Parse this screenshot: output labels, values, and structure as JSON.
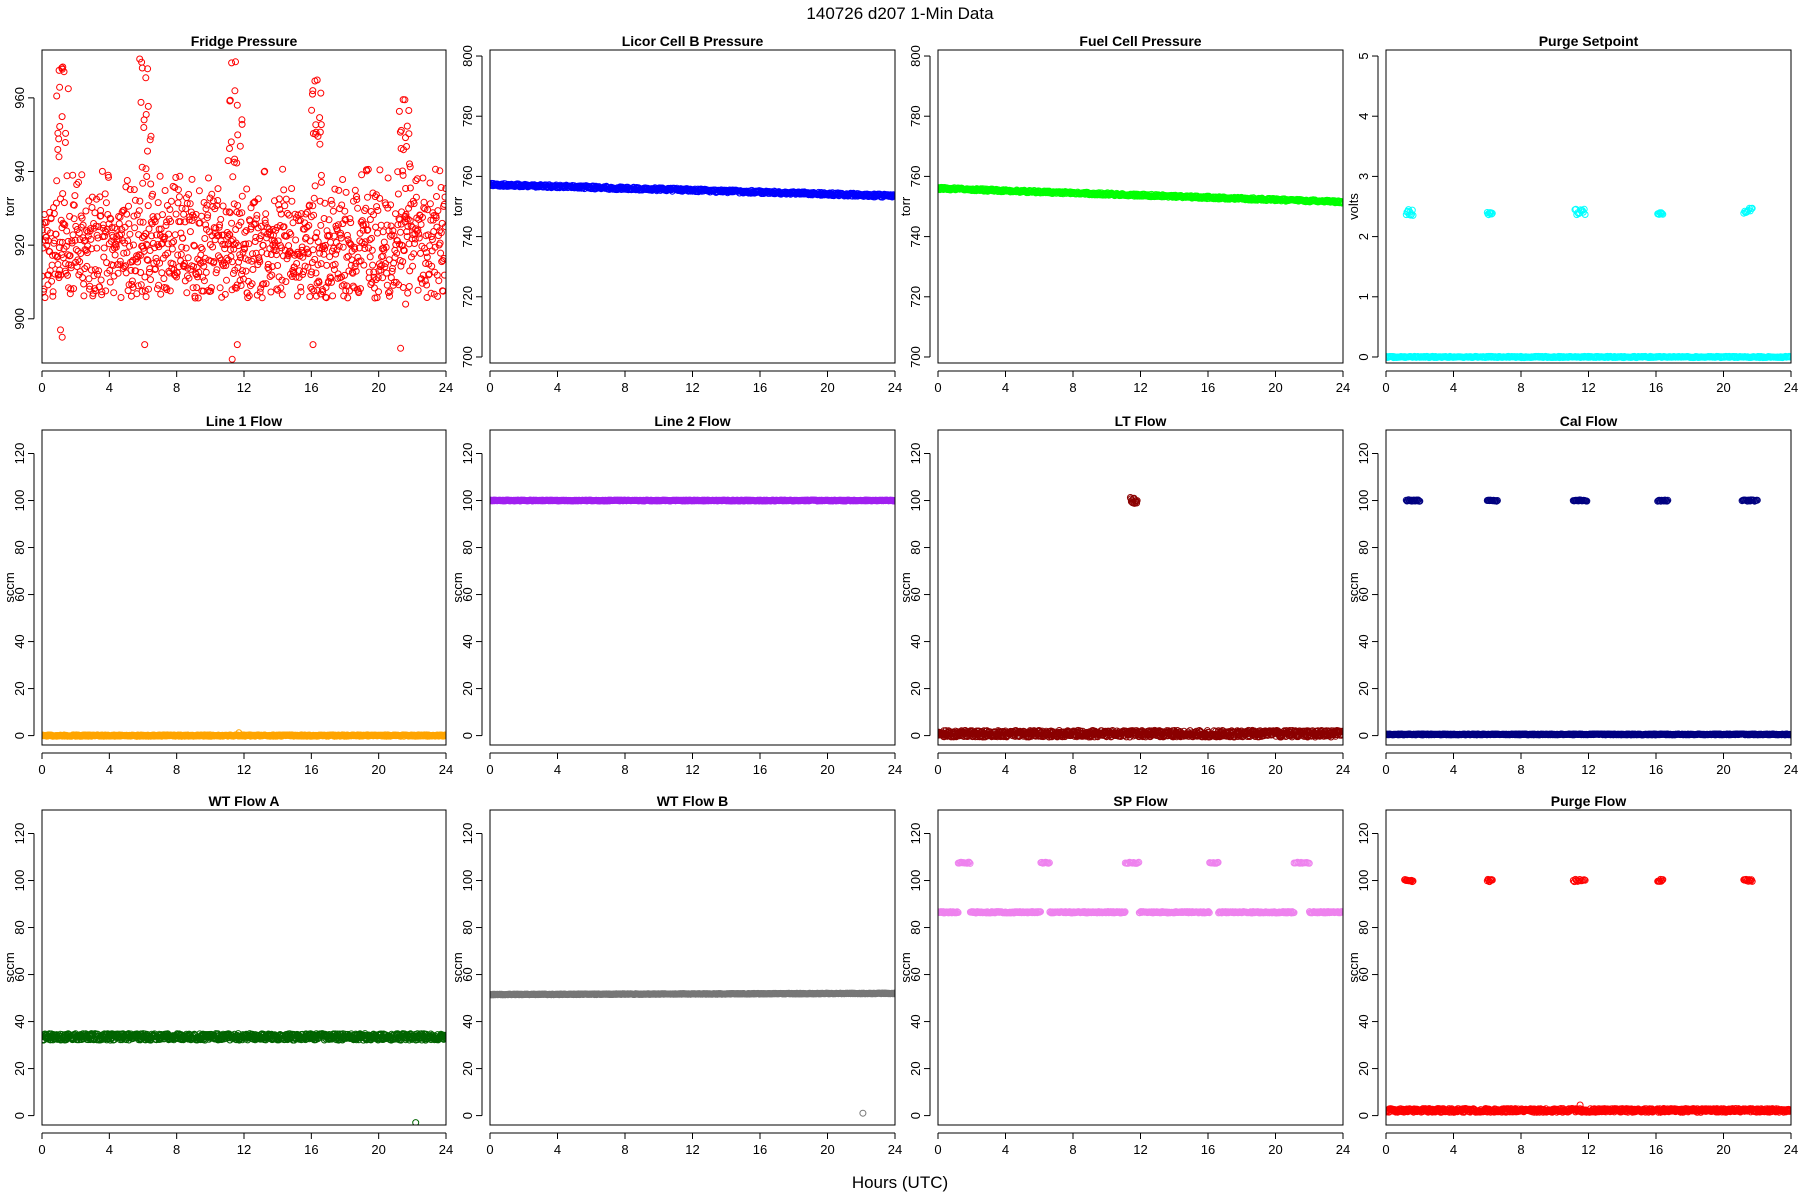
{
  "figure": {
    "title": "140726   d207   1-Min Data",
    "xlabel": "Hours (UTC)"
  },
  "chart_data": [
    {
      "type": "scatter",
      "title": "Fridge Pressure",
      "ylabel": "torr",
      "color": "#ff0000",
      "xlim": [
        0,
        24
      ],
      "xticks": [
        0,
        4,
        8,
        12,
        16,
        20,
        24
      ],
      "ylim": [
        888,
        973
      ],
      "yticks": [
        900,
        920,
        940,
        960
      ],
      "pattern": "noise",
      "base": 920,
      "spread": 16,
      "seed": 11,
      "x_range": [
        0,
        24
      ],
      "n_points": 1100,
      "spikes": [
        {
          "x": [
            0.8,
            1.6
          ],
          "y": [
            938,
            969
          ]
        },
        {
          "x": [
            5.8,
            6.5
          ],
          "y": [
            930,
            972
          ]
        },
        {
          "x": [
            11.0,
            11.9
          ],
          "y": [
            940,
            971
          ]
        },
        {
          "x": [
            16.0,
            16.6
          ],
          "y": [
            935,
            966
          ]
        },
        {
          "x": [
            21.2,
            21.9
          ],
          "y": [
            935,
            960
          ]
        }
      ],
      "outliers": [
        {
          "x": 1.1,
          "y": 897
        },
        {
          "x": 1.2,
          "y": 895
        },
        {
          "x": 6.1,
          "y": 893
        },
        {
          "x": 11.3,
          "y": 889
        },
        {
          "x": 11.6,
          "y": 893
        },
        {
          "x": 16.1,
          "y": 893
        },
        {
          "x": 21.3,
          "y": 892
        },
        {
          "x": 21.6,
          "y": 904
        }
      ]
    },
    {
      "type": "scatter",
      "title": "Licor Cell B Pressure",
      "ylabel": "torr",
      "color": "#0000ff",
      "xlim": [
        0,
        24
      ],
      "xticks": [
        0,
        4,
        8,
        12,
        16,
        20,
        24
      ],
      "ylim": [
        698,
        802
      ],
      "yticks": [
        700,
        720,
        740,
        760,
        780,
        800
      ],
      "pattern": "trend",
      "y_start": 757.3,
      "y_end": 753.5,
      "jitter": 0.5,
      "seed": 21,
      "x_range": [
        0,
        24
      ],
      "n_points": 700
    },
    {
      "type": "scatter",
      "title": "Fuel Cell Pressure",
      "ylabel": "torr",
      "color": "#00ff00",
      "xlim": [
        0,
        24
      ],
      "xticks": [
        0,
        4,
        8,
        12,
        16,
        20,
        24
      ],
      "ylim": [
        698,
        802
      ],
      "yticks": [
        700,
        720,
        740,
        760,
        780,
        800
      ],
      "pattern": "trend",
      "y_start": 756,
      "y_end": 751.5,
      "jitter": 0.4,
      "seed": 31,
      "x_range": [
        0,
        24
      ],
      "n_points": 700
    },
    {
      "type": "scatter",
      "title": "Purge Setpoint",
      "ylabel": "volts",
      "color": "#00ffff",
      "xlim": [
        0,
        24
      ],
      "xticks": [
        0,
        4,
        8,
        12,
        16,
        20,
        24
      ],
      "ylim": [
        -0.1,
        5.1
      ],
      "yticks": [
        0,
        1,
        2,
        3,
        4,
        5
      ],
      "pattern": "flat",
      "base": 0,
      "jitter": 0.01,
      "seed": 41,
      "x_range": [
        0,
        24
      ],
      "n_points": 500,
      "clusters": [
        {
          "x": [
            1.2,
            1.6
          ],
          "y": [
            2.35,
            2.45
          ],
          "n": 10
        },
        {
          "x": [
            6.0,
            6.3
          ],
          "y": [
            2.36,
            2.4
          ],
          "n": 8
        },
        {
          "x": [
            11.2,
            11.8
          ],
          "y": [
            2.36,
            2.46
          ],
          "n": 12
        },
        {
          "x": [
            16.1,
            16.4
          ],
          "y": [
            2.36,
            2.4
          ],
          "n": 8
        },
        {
          "x": [
            21.2,
            21.7
          ],
          "y": [
            2.38,
            2.48
          ],
          "n": 10
        }
      ]
    },
    {
      "type": "scatter",
      "title": "Line 1 Flow",
      "ylabel": "sccm",
      "color": "#ffa500",
      "xlim": [
        0,
        24
      ],
      "xticks": [
        0,
        4,
        8,
        12,
        16,
        20,
        24
      ],
      "ylim": [
        -4,
        130
      ],
      "yticks": [
        0,
        20,
        40,
        60,
        80,
        100,
        120
      ],
      "pattern": "flat",
      "base": 0,
      "jitter": 0.3,
      "seed": 51,
      "x_range": [
        0,
        24
      ],
      "n_points": 700,
      "outliers": [
        {
          "x": 11.7,
          "y": 1.2
        }
      ]
    },
    {
      "type": "scatter",
      "title": "Line 2 Flow",
      "ylabel": "sccm",
      "color": "#a020f0",
      "xlim": [
        0,
        24
      ],
      "xticks": [
        0,
        4,
        8,
        12,
        16,
        20,
        24
      ],
      "ylim": [
        -4,
        130
      ],
      "yticks": [
        0,
        20,
        40,
        60,
        80,
        100,
        120
      ],
      "pattern": "flat",
      "base": 100,
      "jitter": 0.2,
      "seed": 61,
      "x_range": [
        0,
        24
      ],
      "n_points": 700
    },
    {
      "type": "scatter",
      "title": "LT Flow",
      "ylabel": "sccm",
      "color": "#8b0000",
      "xlim": [
        0,
        24
      ],
      "xticks": [
        0,
        4,
        8,
        12,
        16,
        20,
        24
      ],
      "ylim": [
        -4,
        130
      ],
      "yticks": [
        0,
        20,
        40,
        60,
        80,
        100,
        120
      ],
      "pattern": "flat",
      "base": 0.8,
      "jitter": 1.4,
      "seed": 71,
      "x_range": [
        0,
        24
      ],
      "n_points": 1000,
      "clusters": [
        {
          "x": [
            11.4,
            11.8
          ],
          "y": [
            98.5,
            101.5
          ],
          "n": 14
        }
      ]
    },
    {
      "type": "scatter",
      "title": "Cal Flow",
      "ylabel": "sccm",
      "color": "#000080",
      "xlim": [
        0,
        24
      ],
      "xticks": [
        0,
        4,
        8,
        12,
        16,
        20,
        24
      ],
      "ylim": [
        -4,
        130
      ],
      "yticks": [
        0,
        20,
        40,
        60,
        80,
        100,
        120
      ],
      "pattern": "flat",
      "base": 0.5,
      "jitter": 0.2,
      "seed": 81,
      "x_range": [
        0,
        24
      ],
      "n_points": 700,
      "clusters": [
        {
          "x": [
            1.2,
            2.0
          ],
          "y": [
            99.7,
            100.3
          ],
          "n": 18
        },
        {
          "x": [
            6.0,
            6.6
          ],
          "y": [
            99.7,
            100.3
          ],
          "n": 14
        },
        {
          "x": [
            11.1,
            11.9
          ],
          "y": [
            99.7,
            100.3
          ],
          "n": 18
        },
        {
          "x": [
            16.1,
            16.7
          ],
          "y": [
            99.7,
            100.3
          ],
          "n": 14
        },
        {
          "x": [
            21.1,
            22.0
          ],
          "y": [
            99.7,
            100.3
          ],
          "n": 18
        }
      ]
    },
    {
      "type": "scatter",
      "title": "WT Flow A",
      "ylabel": "sccm",
      "color": "#006400",
      "xlim": [
        0,
        24
      ],
      "xticks": [
        0,
        4,
        8,
        12,
        16,
        20,
        24
      ],
      "ylim": [
        -4,
        130
      ],
      "yticks": [
        0,
        20,
        40,
        60,
        80,
        100,
        120
      ],
      "pattern": "flat",
      "base": 33.5,
      "jitter": 1.4,
      "seed": 91,
      "x_range": [
        0,
        24
      ],
      "n_points": 1000,
      "outliers": [
        {
          "x": 22.2,
          "y": -3
        }
      ]
    },
    {
      "type": "scatter",
      "title": "WT Flow B",
      "ylabel": "sccm",
      "color": "#777777",
      "xlim": [
        0,
        24
      ],
      "xticks": [
        0,
        4,
        8,
        12,
        16,
        20,
        24
      ],
      "ylim": [
        -4,
        130
      ],
      "yticks": [
        0,
        20,
        40,
        60,
        80,
        100,
        120
      ],
      "pattern": "trend",
      "y_start": 51.5,
      "y_end": 52.0,
      "jitter": 0.15,
      "seed": 101,
      "x_range": [
        0,
        24
      ],
      "n_points": 700,
      "outliers": [
        {
          "x": 22.1,
          "y": 1
        }
      ]
    },
    {
      "type": "scatter",
      "title": "SP Flow",
      "ylabel": "sccm",
      "color": "#ee82ee",
      "xlim": [
        0,
        24
      ],
      "xticks": [
        0,
        4,
        8,
        12,
        16,
        20,
        24
      ],
      "ylim": [
        -4,
        130
      ],
      "yticks": [
        0,
        20,
        40,
        60,
        80,
        100,
        120
      ],
      "pattern": "flat",
      "base": 86.5,
      "jitter": 0.3,
      "seed": 111,
      "x_range": [
        0,
        24
      ],
      "n_points": 650,
      "gaps": [
        [
          1.2,
          1.9
        ],
        [
          6.1,
          6.6
        ],
        [
          11.1,
          11.9
        ],
        [
          16.1,
          16.6
        ],
        [
          21.1,
          22.0
        ]
      ],
      "clusters": [
        {
          "x": [
            1.2,
            1.9
          ],
          "y": [
            107.3,
            107.8
          ],
          "n": 14
        },
        {
          "x": [
            6.1,
            6.6
          ],
          "y": [
            107.3,
            107.8
          ],
          "n": 10
        },
        {
          "x": [
            11.1,
            11.9
          ],
          "y": [
            107.3,
            107.8
          ],
          "n": 14
        },
        {
          "x": [
            16.1,
            16.6
          ],
          "y": [
            107.3,
            107.8
          ],
          "n": 10
        },
        {
          "x": [
            21.1,
            22.0
          ],
          "y": [
            107.3,
            107.8
          ],
          "n": 14
        }
      ]
    },
    {
      "type": "scatter",
      "title": "Purge Flow",
      "ylabel": "sccm",
      "color": "#ff0000",
      "xlim": [
        0,
        24
      ],
      "xticks": [
        0,
        4,
        8,
        12,
        16,
        20,
        24
      ],
      "ylim": [
        -4,
        130
      ],
      "yticks": [
        0,
        20,
        40,
        60,
        80,
        100,
        120
      ],
      "pattern": "flat",
      "base": 2.2,
      "jitter": 0.8,
      "seed": 121,
      "x_range": [
        0,
        24
      ],
      "n_points": 900,
      "outliers": [
        {
          "x": 11.5,
          "y": 4.5
        }
      ],
      "clusters": [
        {
          "x": [
            1.1,
            1.6
          ],
          "y": [
            99.5,
            100.5
          ],
          "n": 12
        },
        {
          "x": [
            6.0,
            6.3
          ],
          "y": [
            99.5,
            100.5
          ],
          "n": 8
        },
        {
          "x": [
            11.1,
            11.8
          ],
          "y": [
            99.5,
            100.5
          ],
          "n": 12
        },
        {
          "x": [
            16.1,
            16.4
          ],
          "y": [
            99.5,
            100.5
          ],
          "n": 8
        },
        {
          "x": [
            21.2,
            21.7
          ],
          "y": [
            99.5,
            100.5
          ],
          "n": 12
        }
      ]
    }
  ]
}
